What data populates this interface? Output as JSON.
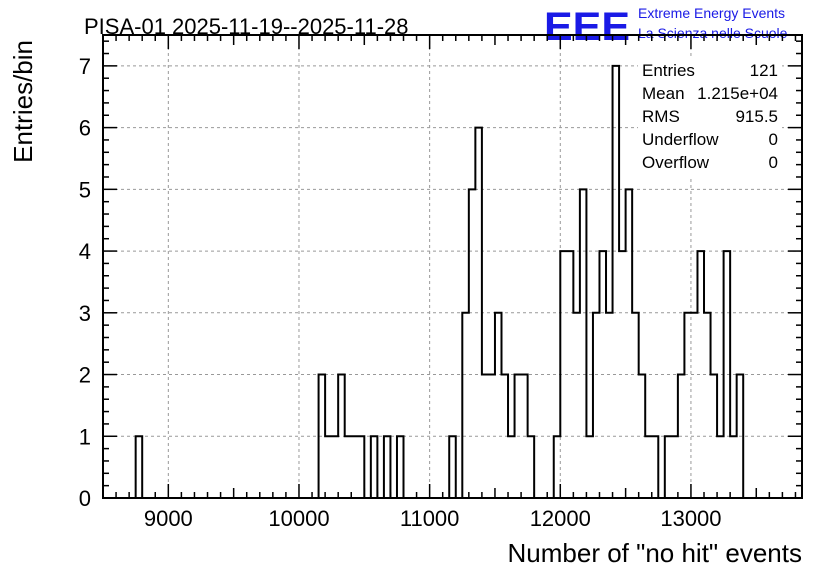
{
  "title": "PISA-01 2025-11-19--2025-11-28",
  "logo": {
    "letters": "EEE",
    "line1": "Extreme Energy Events",
    "line2": "La Scienza nelle Scuole",
    "color": "#1a1ae6"
  },
  "stats": {
    "entries_label": "Entries",
    "entries_value": "121",
    "mean_label": "Mean",
    "mean_value": "1.215e+04",
    "rms_label": "RMS",
    "rms_value": "915.5",
    "underflow_label": "Underflow",
    "underflow_value": "0",
    "overflow_label": "Overflow",
    "overflow_value": "0"
  },
  "chart_data": {
    "type": "bar",
    "style": "histogram step outline, dashed grid",
    "title": "PISA-01 2025-11-19--2025-11-28",
    "xlabel": "Number of \"no hit\" events",
    "ylabel": "Entries/bin",
    "xlim": [
      8500,
      13850
    ],
    "ylim": [
      0,
      7.5
    ],
    "grid": true,
    "bin_width": 50,
    "xticks": [
      9000,
      10000,
      11000,
      12000,
      13000
    ],
    "yticks": [
      0,
      1,
      2,
      3,
      4,
      5,
      6,
      7
    ],
    "bins": [
      {
        "x": 8775,
        "y": 1
      },
      {
        "x": 10175,
        "y": 2
      },
      {
        "x": 10225,
        "y": 1
      },
      {
        "x": 10275,
        "y": 1
      },
      {
        "x": 10325,
        "y": 2
      },
      {
        "x": 10375,
        "y": 1
      },
      {
        "x": 10425,
        "y": 1
      },
      {
        "x": 10475,
        "y": 1
      },
      {
        "x": 10575,
        "y": 1
      },
      {
        "x": 10675,
        "y": 1
      },
      {
        "x": 10775,
        "y": 1
      },
      {
        "x": 11175,
        "y": 1
      },
      {
        "x": 11275,
        "y": 3
      },
      {
        "x": 11325,
        "y": 5
      },
      {
        "x": 11375,
        "y": 6
      },
      {
        "x": 11425,
        "y": 2
      },
      {
        "x": 11475,
        "y": 2
      },
      {
        "x": 11525,
        "y": 3
      },
      {
        "x": 11575,
        "y": 2
      },
      {
        "x": 11625,
        "y": 1
      },
      {
        "x": 11675,
        "y": 2
      },
      {
        "x": 11725,
        "y": 2
      },
      {
        "x": 11775,
        "y": 1
      },
      {
        "x": 11975,
        "y": 1
      },
      {
        "x": 12025,
        "y": 4
      },
      {
        "x": 12075,
        "y": 4
      },
      {
        "x": 12125,
        "y": 3
      },
      {
        "x": 12175,
        "y": 5
      },
      {
        "x": 12225,
        "y": 1
      },
      {
        "x": 12275,
        "y": 3
      },
      {
        "x": 12325,
        "y": 4
      },
      {
        "x": 12375,
        "y": 3
      },
      {
        "x": 12425,
        "y": 7
      },
      {
        "x": 12475,
        "y": 4
      },
      {
        "x": 12525,
        "y": 5
      },
      {
        "x": 12575,
        "y": 3
      },
      {
        "x": 12625,
        "y": 2
      },
      {
        "x": 12675,
        "y": 1
      },
      {
        "x": 12725,
        "y": 1
      },
      {
        "x": 12825,
        "y": 1
      },
      {
        "x": 12875,
        "y": 1
      },
      {
        "x": 12925,
        "y": 2
      },
      {
        "x": 12975,
        "y": 3
      },
      {
        "x": 13025,
        "y": 3
      },
      {
        "x": 13075,
        "y": 4
      },
      {
        "x": 13125,
        "y": 3
      },
      {
        "x": 13175,
        "y": 2
      },
      {
        "x": 13225,
        "y": 1
      },
      {
        "x": 13275,
        "y": 4
      },
      {
        "x": 13325,
        "y": 1
      },
      {
        "x": 13375,
        "y": 2
      }
    ]
  }
}
